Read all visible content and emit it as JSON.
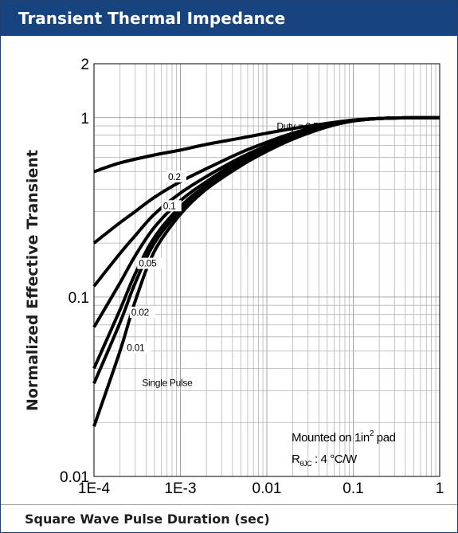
{
  "header": {
    "title": "Transient Thermal Impedance"
  },
  "footer": {
    "xlabel": "Square Wave Pulse Duration (sec)"
  },
  "colors": {
    "header_bg": "#17437e",
    "header_text": "#ffffff",
    "curve": "#000000",
    "grid": "#b4b4b4"
  },
  "chart_data": {
    "type": "line",
    "title": "Transient Thermal Impedance",
    "xlabel": "Square Wave Pulse Duration (sec)",
    "ylabel": "Normalized Effective Transient",
    "x_scale": "log",
    "y_scale": "log",
    "xlim": [
      0.0001,
      1
    ],
    "ylim": [
      0.01,
      2
    ],
    "grid": true,
    "x_ticks": [
      {
        "value": 0.0001,
        "label": "1E-4"
      },
      {
        "value": 0.001,
        "label": "1E-3"
      },
      {
        "value": 0.01,
        "label": "0.01"
      },
      {
        "value": 0.1,
        "label": "0.1"
      },
      {
        "value": 1,
        "label": "1"
      }
    ],
    "y_ticks": [
      {
        "value": 0.01,
        "label": "0.01"
      },
      {
        "value": 0.1,
        "label": "0.1"
      },
      {
        "value": 1,
        "label": "1"
      },
      {
        "value": 2,
        "label": "2"
      }
    ],
    "annotations": {
      "mount": "Mounted on 1in",
      "mount_sup": "2",
      "mount_tail": " pad",
      "r_main": "R",
      "r_sub": "θJC",
      "r_value": " : 4 °C/W"
    },
    "series": [
      {
        "name": "Duty = 0.5",
        "x": [
          0.0001,
          0.0002,
          0.0005,
          0.001,
          0.002,
          0.005,
          0.01,
          0.02,
          0.05,
          0.1,
          0.2,
          0.5,
          1
        ],
        "y": [
          0.5,
          0.56,
          0.62,
          0.66,
          0.71,
          0.77,
          0.82,
          0.87,
          0.93,
          0.97,
          0.99,
          1.0,
          1.0
        ]
      },
      {
        "name": "0.2",
        "x": [
          0.0001,
          0.0002,
          0.0003,
          0.0005,
          0.001,
          0.002,
          0.005,
          0.01,
          0.02,
          0.05,
          0.1,
          0.2,
          0.5,
          1
        ],
        "y": [
          0.2,
          0.26,
          0.3,
          0.36,
          0.44,
          0.52,
          0.64,
          0.73,
          0.82,
          0.92,
          0.97,
          0.99,
          1.0,
          1.0
        ]
      },
      {
        "name": "0.1",
        "x": [
          0.0001,
          0.0002,
          0.0003,
          0.0005,
          0.001,
          0.002,
          0.005,
          0.01,
          0.02,
          0.05,
          0.1,
          0.2,
          0.5,
          1
        ],
        "y": [
          0.115,
          0.175,
          0.22,
          0.29,
          0.38,
          0.47,
          0.6,
          0.7,
          0.8,
          0.91,
          0.96,
          0.99,
          1.0,
          1.0
        ]
      },
      {
        "name": "0.05",
        "x": [
          0.0001,
          0.0002,
          0.0003,
          0.0005,
          0.001,
          0.002,
          0.005,
          0.01,
          0.02,
          0.05,
          0.1,
          0.2,
          0.5,
          1
        ],
        "y": [
          0.068,
          0.12,
          0.17,
          0.245,
          0.345,
          0.44,
          0.58,
          0.68,
          0.79,
          0.9,
          0.96,
          0.99,
          1.0,
          1.0
        ]
      },
      {
        "name": "0.02",
        "x": [
          0.0001,
          0.0002,
          0.0003,
          0.0005,
          0.001,
          0.002,
          0.005,
          0.01,
          0.02,
          0.05,
          0.1,
          0.2,
          0.5,
          1
        ],
        "y": [
          0.04,
          0.085,
          0.135,
          0.215,
          0.32,
          0.42,
          0.56,
          0.67,
          0.78,
          0.9,
          0.96,
          0.99,
          1.0,
          1.0
        ]
      },
      {
        "name": "0.01",
        "x": [
          0.0001,
          0.0002,
          0.0003,
          0.0005,
          0.001,
          0.002,
          0.005,
          0.01,
          0.02,
          0.05,
          0.1,
          0.2,
          0.5,
          1
        ],
        "y": [
          0.033,
          0.072,
          0.12,
          0.2,
          0.305,
          0.41,
          0.55,
          0.66,
          0.77,
          0.89,
          0.96,
          0.99,
          1.0,
          1.0
        ]
      },
      {
        "name": "Single Pulse",
        "x": [
          0.0001,
          0.0002,
          0.0003,
          0.0005,
          0.001,
          0.002,
          0.005,
          0.01,
          0.02,
          0.05,
          0.1,
          0.2,
          0.5,
          1
        ],
        "y": [
          0.019,
          0.05,
          0.095,
          0.18,
          0.29,
          0.4,
          0.54,
          0.65,
          0.76,
          0.89,
          0.96,
          0.99,
          1.0,
          1.0
        ]
      }
    ]
  }
}
